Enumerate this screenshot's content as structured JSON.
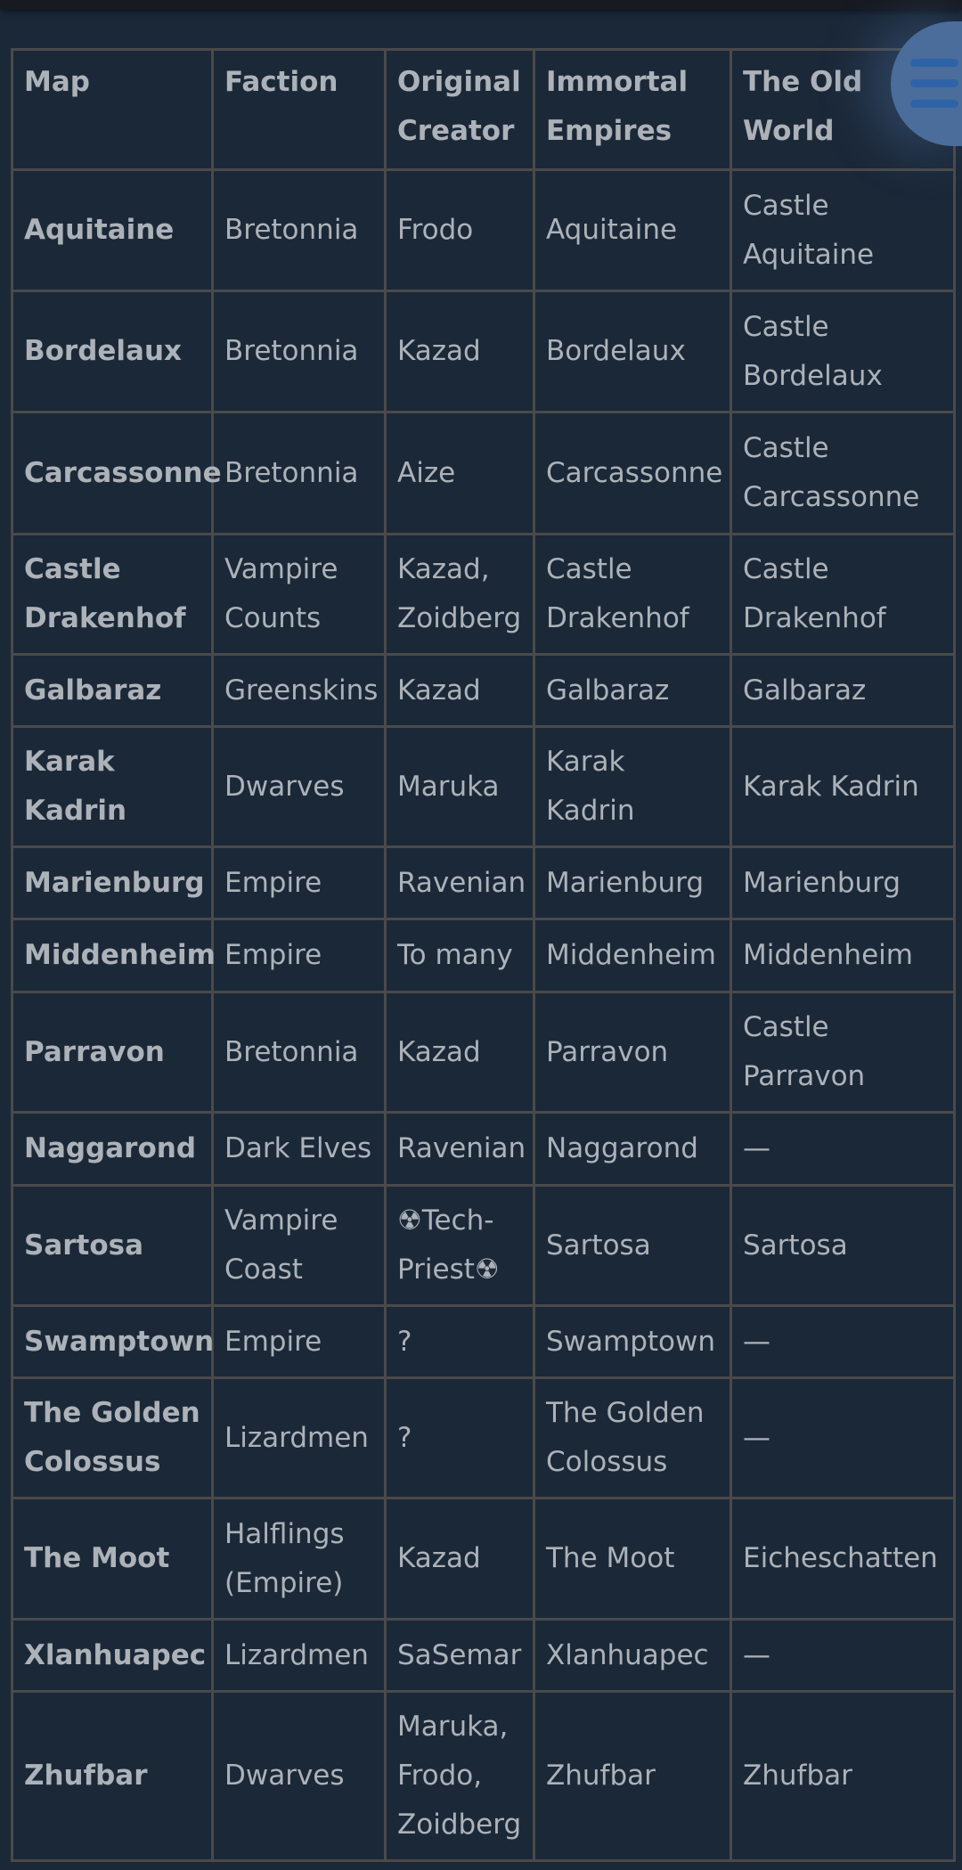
{
  "table": {
    "headers": [
      "Map",
      "Faction",
      "Original Creator",
      "Immortal Empires",
      "The Old World"
    ],
    "rows": [
      [
        "Aquitaine",
        "Bretonnia",
        "Frodo",
        "Aquitaine",
        "Castle Aquitaine"
      ],
      [
        "Bordelaux",
        "Bretonnia",
        "Kazad",
        "Bordelaux",
        "Castle Bordelaux"
      ],
      [
        "Carcassonne",
        "Bretonnia",
        "Aize",
        "Carcassonne",
        "Castle Carcassonne"
      ],
      [
        "Castle Drakenhof",
        "Vampire Counts",
        "Kazad, Zoidberg",
        "Castle Drakenhof",
        "Castle Drakenhof"
      ],
      [
        "Galbaraz",
        "Greenskins",
        "Kazad",
        "Galbaraz",
        "Galbaraz"
      ],
      [
        "Karak Kadrin",
        "Dwarves",
        "Maruka",
        "Karak Kadrin",
        "Karak Kadrin"
      ],
      [
        "Marienburg",
        "Empire",
        "Ravenian",
        "Marienburg",
        "Marienburg"
      ],
      [
        "Middenheim",
        "Empire",
        "To many",
        "Middenheim",
        "Middenheim"
      ],
      [
        "Parravon",
        "Bretonnia",
        "Kazad",
        "Parravon",
        "Castle Parravon"
      ],
      [
        "Naggarond",
        "Dark Elves",
        "Ravenian",
        "Naggarond",
        "—"
      ],
      [
        "Sartosa",
        "Vampire Coast",
        "☢Tech-Priest☢",
        "Sartosa",
        "Sartosa"
      ],
      [
        "Swamptown",
        "Empire",
        "?",
        "Swamptown",
        "—"
      ],
      [
        "The Golden Colossus",
        "Lizardmen",
        "?",
        "The Golden Colossus",
        "—"
      ],
      [
        "The Moot",
        "Halflings (Empire)",
        "Kazad",
        "The Moot",
        "Eicheschatten"
      ],
      [
        "Xlanhuapec",
        "Lizardmen",
        "SaSemar",
        "Xlanhuapec",
        "—"
      ],
      [
        "Zhufbar",
        "Dwarves",
        "Maruka, Frodo, Zoidberg",
        "Zhufbar",
        "Zhufbar"
      ]
    ]
  },
  "menu_button": {
    "icon": "hamburger-menu-icon",
    "color": "#4a6d9c"
  }
}
